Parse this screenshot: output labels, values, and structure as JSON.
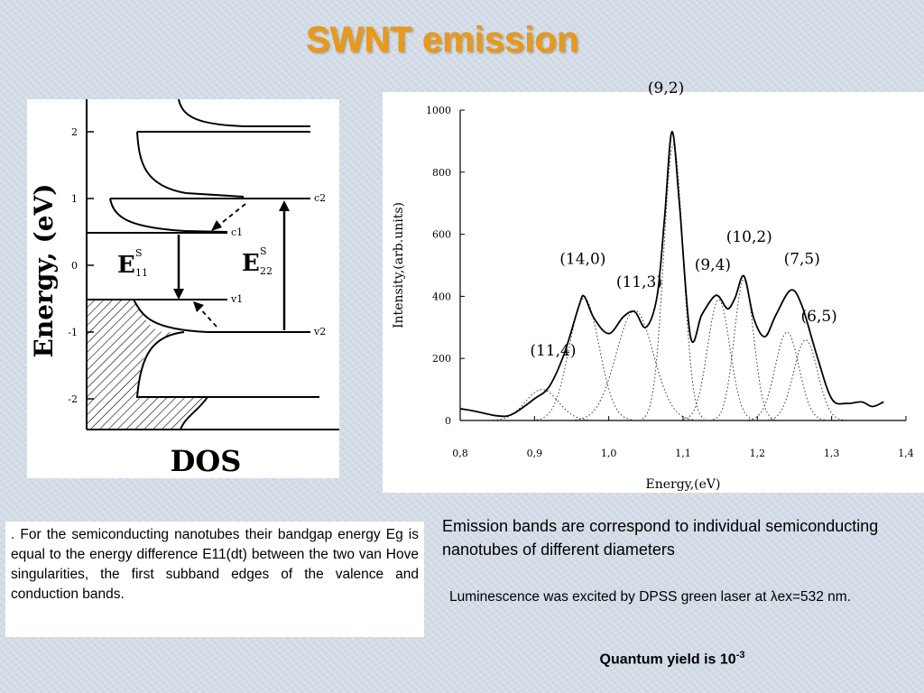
{
  "title": "SWNT emission",
  "dos_diagram": {
    "y_axis_label": "Energy, (eV)",
    "x_axis_label": "DOS",
    "y_ticks": [
      "2",
      "1",
      "0",
      "-1",
      "-2"
    ],
    "level_labels": [
      "c2",
      "c1",
      "v1",
      "v2"
    ],
    "transition_labels": {
      "e11_main": "E",
      "e11_sup": "S",
      "e11_sub": "11",
      "e22_main": "E",
      "e22_sup": "S",
      "e22_sub": "22"
    }
  },
  "chart_data": {
    "type": "line",
    "xlabel": "Energy,(eV)",
    "ylabel": "Intensity,(arb.units)",
    "xlim": [
      0.8,
      1.4
    ],
    "ylim": [
      0,
      1000
    ],
    "x_ticks": [
      "0,8",
      "0,9",
      "1,0",
      "1,1",
      "1,2",
      "1,3",
      "1,4"
    ],
    "y_ticks": [
      "0",
      "200",
      "400",
      "600",
      "800",
      "1000"
    ],
    "series": [
      {
        "style": "solid",
        "x": [
          0.8,
          0.82,
          0.85,
          0.87,
          0.9,
          0.92,
          0.94,
          0.96,
          0.967,
          0.98,
          1.0,
          1.02,
          1.035,
          1.05,
          1.065,
          1.075,
          1.085,
          1.095,
          1.11,
          1.125,
          1.14,
          1.148,
          1.16,
          1.17,
          1.182,
          1.195,
          1.21,
          1.225,
          1.245,
          1.26,
          1.28,
          1.3,
          1.32,
          1.34,
          1.355,
          1.37
        ],
        "y": [
          38,
          30,
          15,
          20,
          70,
          110,
          215,
          370,
          400,
          330,
          280,
          335,
          350,
          300,
          400,
          650,
          930,
          700,
          270,
          340,
          395,
          400,
          360,
          395,
          465,
          330,
          270,
          340,
          420,
          370,
          210,
          70,
          55,
          60,
          45,
          60
        ]
      }
    ],
    "peaks": [
      {
        "label": "(11,4)",
        "x": 0.91,
        "y": 100
      },
      {
        "label": "(14,0)",
        "x": 0.967,
        "y": 395
      },
      {
        "label": "(11,3)",
        "x": 1.035,
        "y": 355
      },
      {
        "label": "(9,2)",
        "x": 1.087,
        "y": 890
      },
      {
        "label": "(9,4)",
        "x": 1.148,
        "y": 390
      },
      {
        "label": "(10,2)",
        "x": 1.182,
        "y": 455
      },
      {
        "label": "(7,5)",
        "x": 1.24,
        "y": 285
      },
      {
        "label": "(6,5)",
        "x": 1.265,
        "y": 260
      }
    ]
  },
  "text": {
    "left_paragraph": ". For the semiconducting nanotubes their bandgap energy Eg is equal to the energy difference E11(dt) between the two van Hove singularities, the first subband edges of the valence and conduction bands.",
    "emission_bands": "Emission bands are correspond to individual semiconducting nanotubes of different diameters",
    "luminescence": "Luminescence was excited by DPSS green laser at λex=532 nm.",
    "quantum_yield_prefix": "Quantum yield is 10",
    "quantum_yield_exp": "-3"
  }
}
